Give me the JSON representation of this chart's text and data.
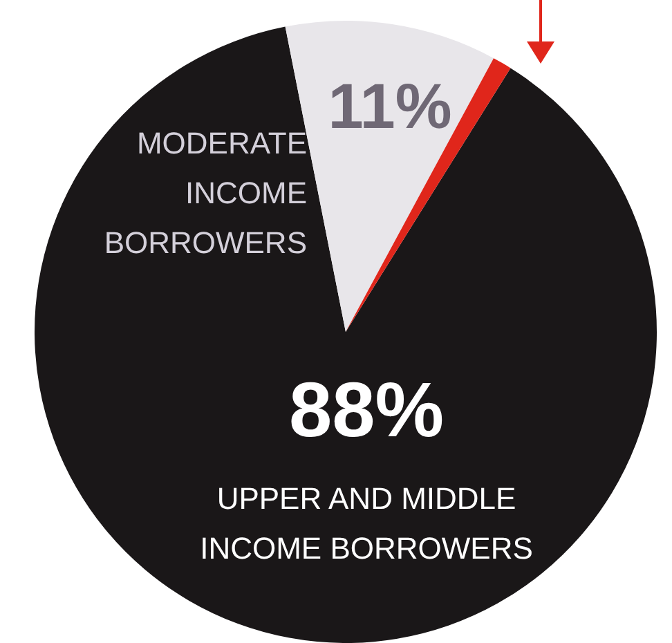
{
  "chart_data": {
    "type": "pie",
    "categories": [
      "UPPER AND MIDDLE INCOME BORROWERS",
      "MODERATE INCOME BORROWERS",
      null
    ],
    "values": [
      88,
      11,
      1
    ],
    "colors": [
      "#1a1718",
      "#e8e6ea",
      "#e0261b"
    ],
    "value_labels": [
      "88%",
      "11%",
      null
    ],
    "legend": false
  }
}
